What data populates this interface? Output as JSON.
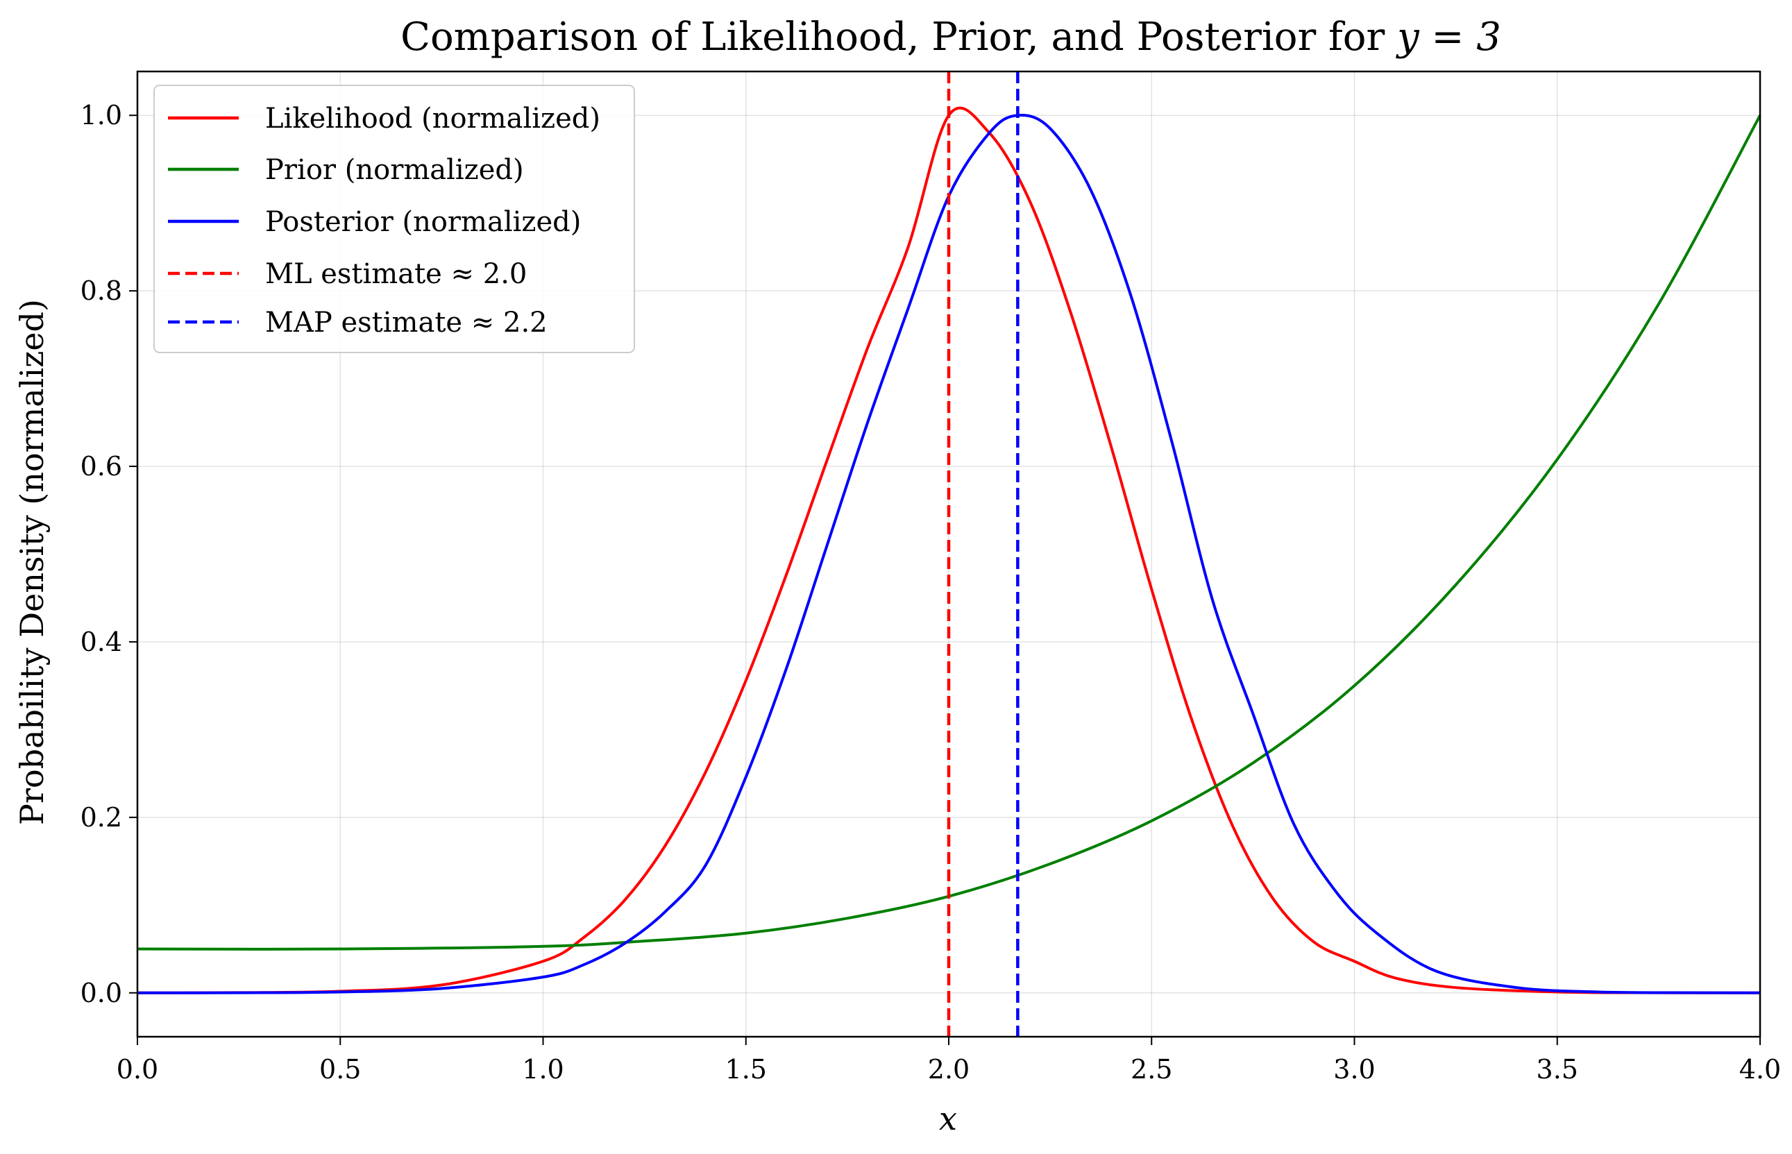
{
  "chart_data": {
    "type": "line",
    "title": "Comparison of Likelihood, Prior, and Posterior for y = 3",
    "title_prefix": "Comparison of Likelihood, Prior, and Posterior for ",
    "title_math": "y = 3",
    "xlabel": "x",
    "ylabel": "Probability Density (normalized)",
    "xlim": [
      0.0,
      4.0
    ],
    "ylim": [
      -0.05,
      1.05
    ],
    "xticks": [
      0.0,
      0.5,
      1.0,
      1.5,
      2.0,
      2.5,
      3.0,
      3.5,
      4.0
    ],
    "xtick_labels": [
      "0.0",
      "0.5",
      "1.0",
      "1.5",
      "2.0",
      "2.5",
      "3.0",
      "3.5",
      "4.0"
    ],
    "yticks": [
      0.0,
      0.2,
      0.4,
      0.6,
      0.8,
      1.0
    ],
    "ytick_labels": [
      "0.0",
      "0.2",
      "0.4",
      "0.6",
      "0.8",
      "1.0"
    ],
    "grid": true,
    "legend_position": "top-left",
    "series": [
      {
        "name": "Likelihood (normalized)",
        "color": "#ff0000",
        "style": "solid",
        "x": [
          0.0,
          0.25,
          0.5,
          0.75,
          1.0,
          1.1,
          1.2,
          1.3,
          1.4,
          1.5,
          1.6,
          1.7,
          1.8,
          1.9,
          2.0,
          2.1,
          2.2,
          2.3,
          2.4,
          2.5,
          2.6,
          2.7,
          2.8,
          2.9,
          3.0,
          3.1,
          3.25,
          3.5,
          3.75,
          4.0
        ],
        "y": [
          0.0,
          0.0003,
          0.0018,
          0.009,
          0.036,
          0.063,
          0.105,
          0.167,
          0.251,
          0.356,
          0.477,
          0.607,
          0.735,
          0.85,
          1.0,
          0.98,
          0.902,
          0.776,
          0.623,
          0.46,
          0.31,
          0.19,
          0.107,
          0.058,
          0.036,
          0.017,
          0.006,
          0.001,
          0.0001,
          0.0
        ]
      },
      {
        "name": "Prior (normalized)",
        "color": "#007f00",
        "style": "solid",
        "x": [
          0.0,
          0.5,
          1.0,
          1.25,
          1.5,
          1.75,
          2.0,
          2.25,
          2.5,
          2.75,
          3.0,
          3.25,
          3.5,
          3.75,
          4.0
        ],
        "y": [
          0.05,
          0.05,
          0.053,
          0.059,
          0.068,
          0.085,
          0.11,
          0.147,
          0.196,
          0.262,
          0.35,
          0.465,
          0.608,
          0.785,
          1.0
        ]
      },
      {
        "name": "Posterior (normalized)",
        "color": "#0000ff",
        "style": "solid",
        "x": [
          0.0,
          0.25,
          0.5,
          0.75,
          1.0,
          1.1,
          1.2,
          1.3,
          1.4,
          1.5,
          1.6,
          1.7,
          1.8,
          1.9,
          2.0,
          2.1,
          2.17,
          2.25,
          2.35,
          2.45,
          2.55,
          2.65,
          2.75,
          2.85,
          2.95,
          3.05,
          3.2,
          3.4,
          3.6,
          3.8,
          4.0
        ],
        "y": [
          0.0,
          0.0001,
          0.001,
          0.005,
          0.018,
          0.032,
          0.056,
          0.092,
          0.145,
          0.246,
          0.37,
          0.51,
          0.65,
          0.78,
          0.908,
          0.98,
          1.0,
          0.985,
          0.915,
          0.793,
          0.628,
          0.448,
          0.318,
          0.193,
          0.118,
          0.07,
          0.025,
          0.006,
          0.001,
          0.0002,
          0.0
        ]
      }
    ],
    "vlines": [
      {
        "name": "ML estimate ≈ 2.0",
        "x": 2.0,
        "color": "#ff0000",
        "style": "dashed"
      },
      {
        "name": "MAP estimate ≈ 2.2",
        "x": 2.17,
        "color": "#0000ff",
        "style": "dashed"
      }
    ]
  }
}
